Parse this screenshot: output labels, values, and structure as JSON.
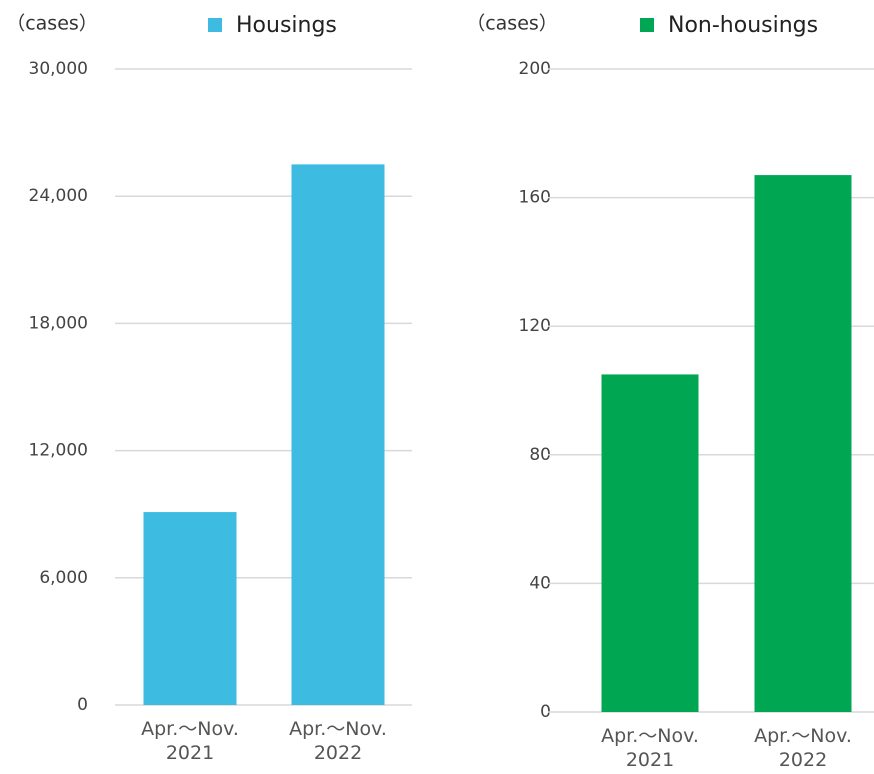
{
  "chart_data": [
    {
      "type": "bar",
      "y_label": "（cases）",
      "categories": [
        "Apr.～Nov. 2021",
        "Apr.～Nov. 2022"
      ],
      "series": [
        {
          "name": "Housings",
          "color": "#3dbbe0",
          "values": [
            9100,
            25500
          ]
        }
      ],
      "ylim": [
        0,
        30000
      ],
      "yticks": [
        0,
        {
          "value": 6000,
          "label": "6,000"
        },
        {
          "value": 12000,
          "label": "12,000"
        },
        {
          "value": 18000,
          "label": "18,000"
        },
        {
          "value": 24000,
          "label": "24,000"
        },
        {
          "value": 30000,
          "label": "30,000"
        }
      ],
      "grid": true,
      "legend": "top"
    },
    {
      "type": "bar",
      "y_label": "（cases）",
      "categories": [
        "Apr.～Nov. 2021",
        "Apr.～Nov. 2022"
      ],
      "series": [
        {
          "name": "Non-housings",
          "color": "#00a651",
          "values": [
            105,
            167
          ]
        }
      ],
      "ylim": [
        0,
        200
      ],
      "yticks": [
        0,
        40,
        80,
        120,
        160,
        200
      ],
      "grid": true,
      "legend": "top"
    }
  ]
}
